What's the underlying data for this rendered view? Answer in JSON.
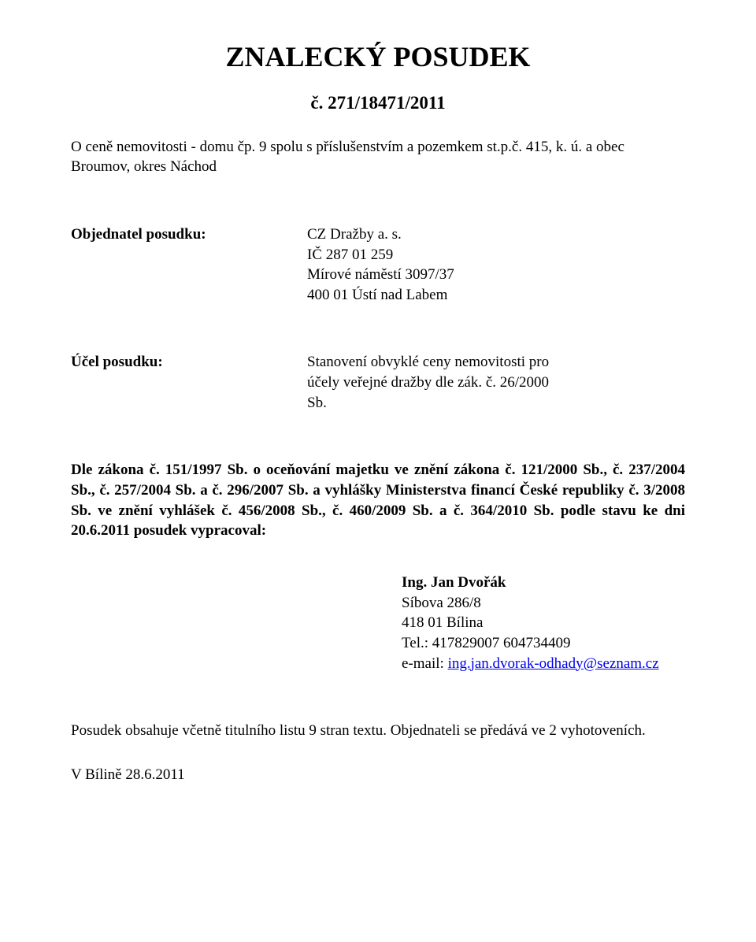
{
  "title": "ZNALECKÝ POSUDEK",
  "subtitle": "č. 271/18471/2011",
  "description": "O ceně nemovitosti - domu čp. 9 spolu s příslušenstvím a pozemkem st.p.č. 415, k. ú. a obec Broumov, okres Náchod",
  "orderer": {
    "label": "Objednatel posudku:",
    "lines": [
      "CZ Dražby a. s.",
      "IČ 287 01 259",
      "Mírové náměstí 3097/37",
      "400 01 Ústí nad Labem"
    ]
  },
  "purpose": {
    "label": "Účel posudku:",
    "lines": [
      "Stanovení obvyklé ceny nemovitosti pro",
      "účely veřejné dražby dle zák. č. 26/2000",
      "Sb."
    ]
  },
  "law": {
    "prefix": "Dle zákona č. 151/1997 Sb. o oceňování majetku ve znění zákona č. 121/2000 Sb., č. 237/2004 Sb., č. 257/2004 Sb. a č. 296/2007 Sb. a vyhlášky Ministerstva financí České republiky č. 3/2008 Sb. ve znění vyhlášek č. 456/2008 Sb., č. 460/2009 Sb. a č. 364/2010 Sb. podle stavu ke dni 20.6.2011 posudek vypracoval:"
  },
  "author": {
    "name": "Ing. Jan Dvořák",
    "addr1": "Síbova 286/8",
    "addr2": "418 01 Bílina",
    "tel_label": "Tel.: 417829007   604734409",
    "email_label": "e-mail: ",
    "email": "ing.jan.dvorak-odhady@seznam.cz"
  },
  "footer": "Posudek obsahuje včetně titulního listu 9 stran textu. Objednateli se předává ve 2 vyhotoveních.",
  "place_date": "V Bílině 28.6.2011"
}
